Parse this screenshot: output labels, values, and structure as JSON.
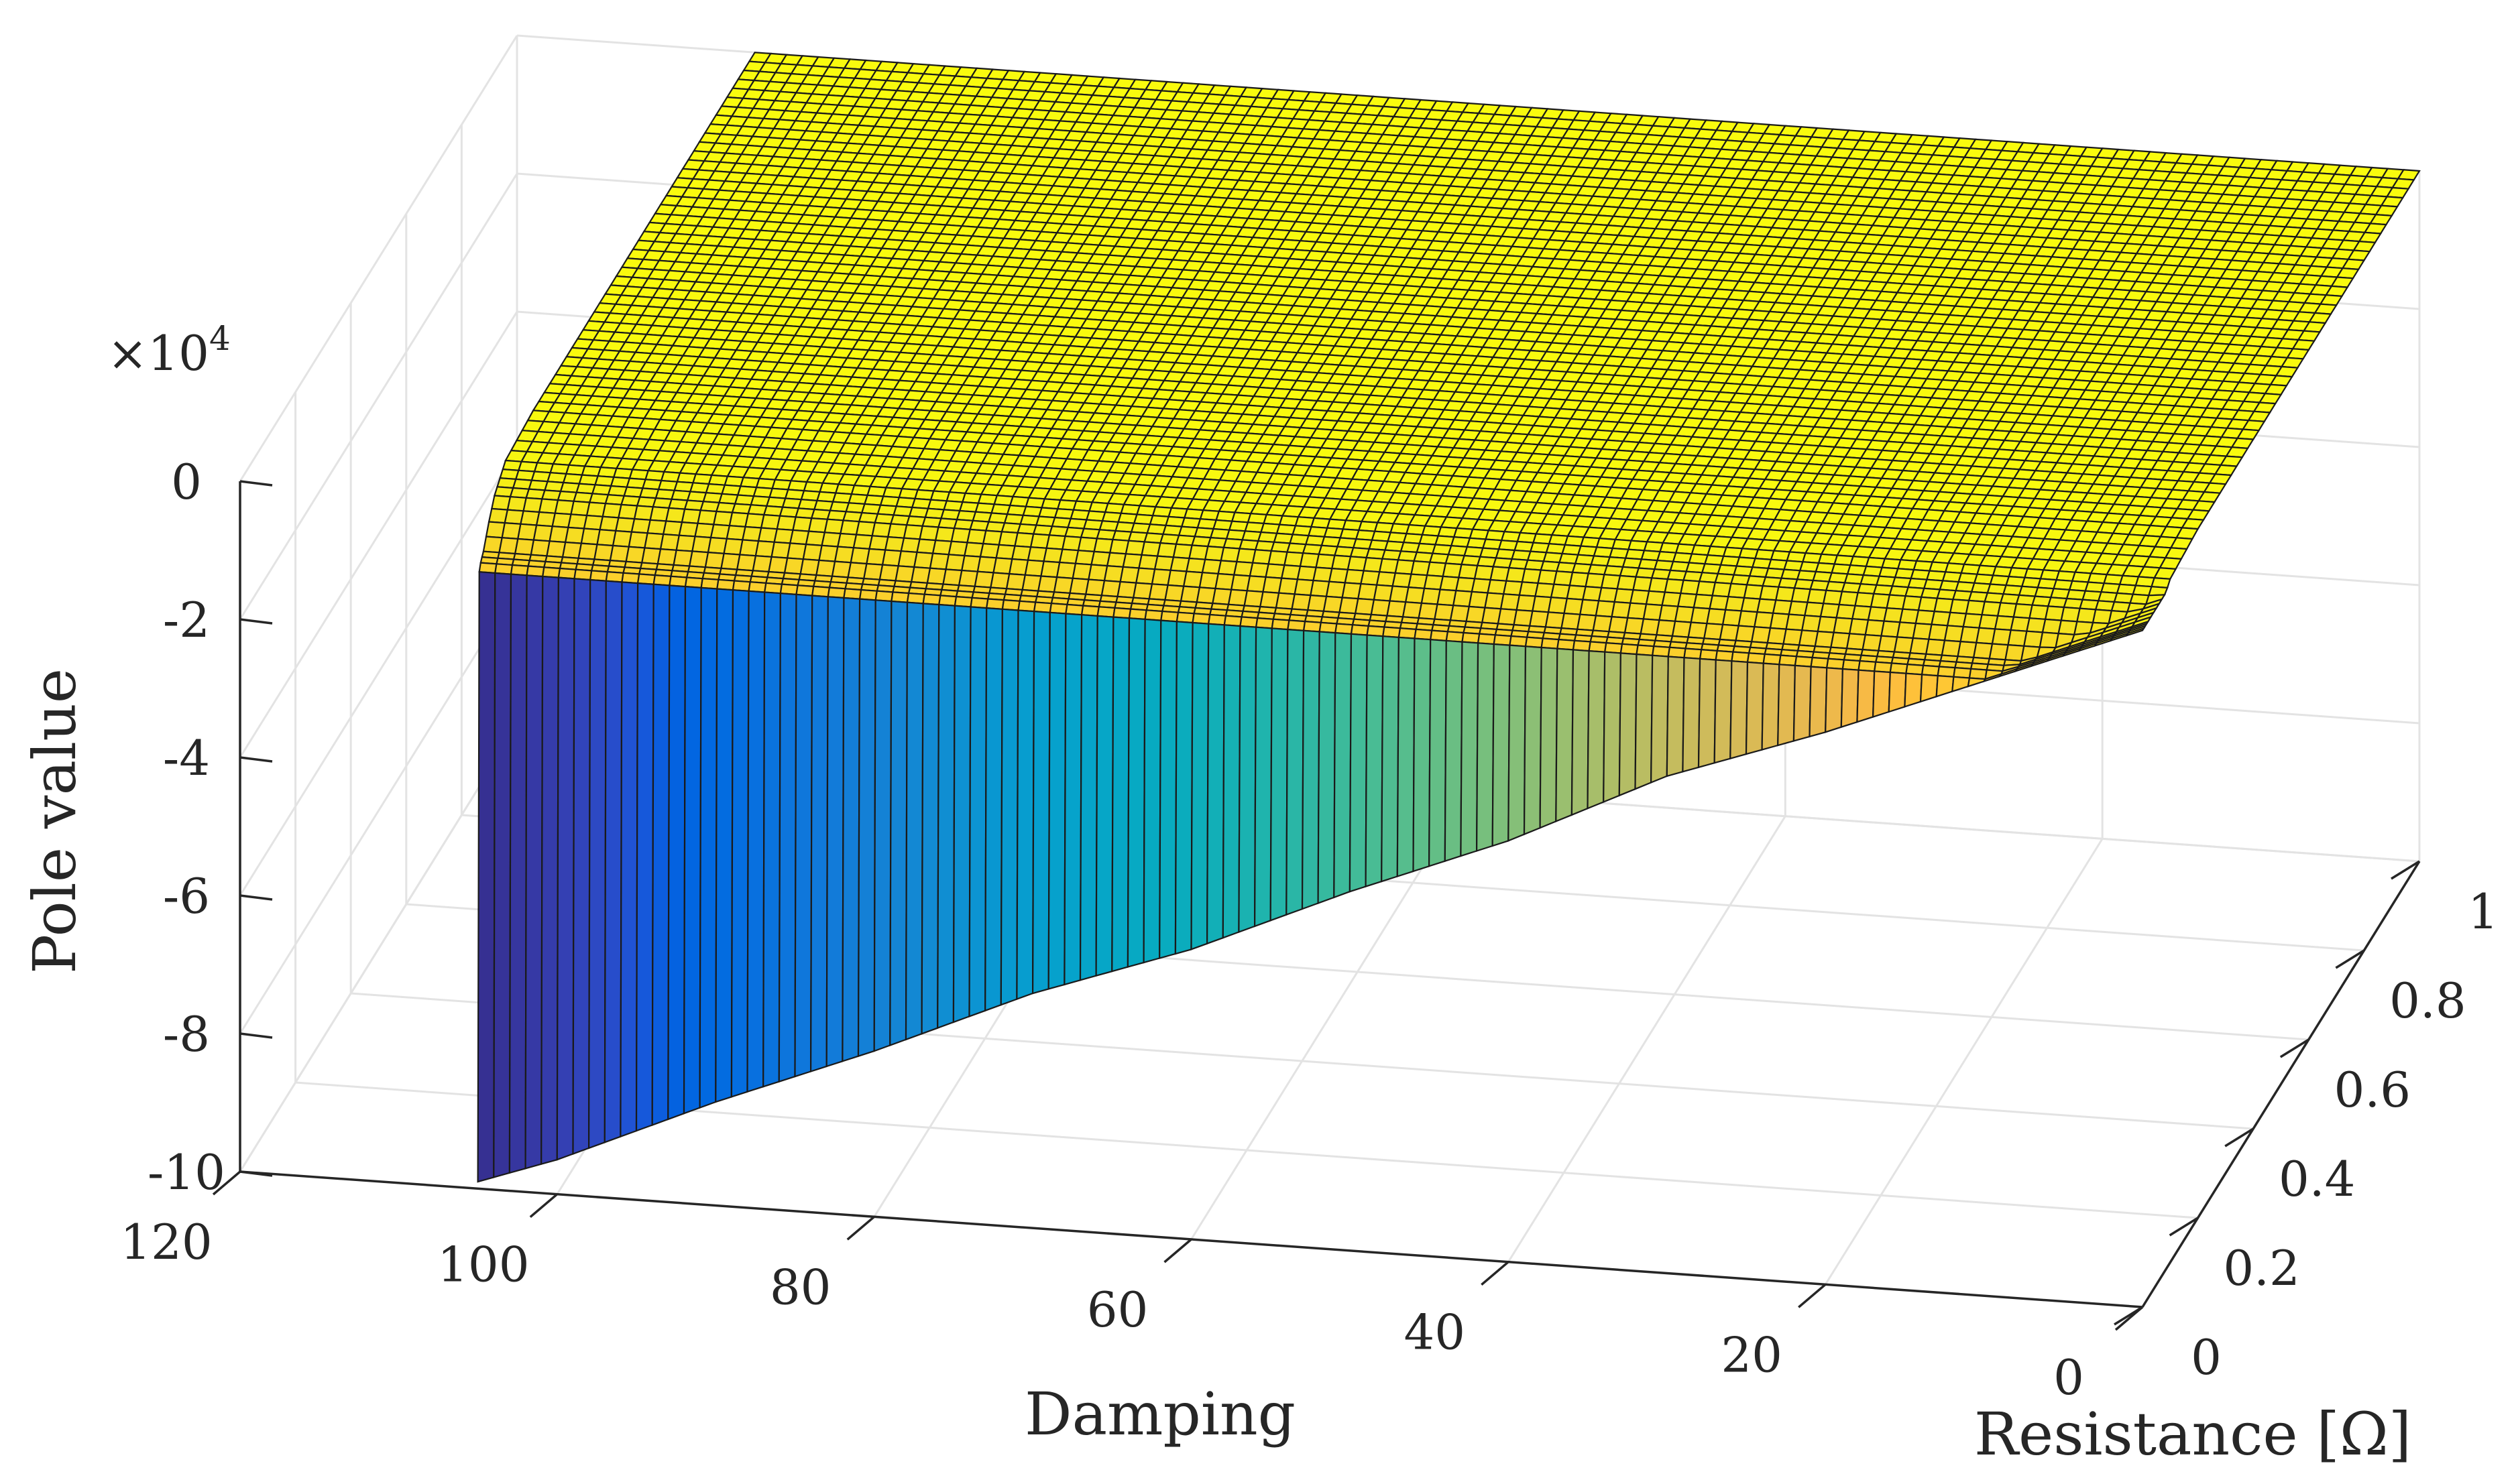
{
  "chart_data": {
    "type": "surface",
    "xlabel": "Damping",
    "ylabel": "Resistance [Ω]",
    "zlabel": "Pole value",
    "z_exponent_label": "×10",
    "z_exponent_power": "4",
    "xlim": [
      0,
      120
    ],
    "ylim": [
      0,
      1
    ],
    "zlim": [
      -10,
      0
    ],
    "z_scale": 10000,
    "x_surface_range": [
      0,
      105
    ],
    "y_surface_range": [
      0,
      1
    ],
    "x_ticks": [
      "0",
      "20",
      "40",
      "60",
      "80",
      "100",
      "120"
    ],
    "x_tick_values": [
      0,
      20,
      40,
      60,
      80,
      100,
      120
    ],
    "y_ticks": [
      "0",
      "0.2",
      "0.4",
      "0.6",
      "0.8",
      "1"
    ],
    "y_tick_values": [
      0,
      0.2,
      0.4,
      0.6,
      0.8,
      1
    ],
    "z_ticks": [
      "-10",
      "-8",
      "-6",
      "-4",
      "-2",
      "0"
    ],
    "z_tick_values": [
      -10,
      -8,
      -6,
      -4,
      -2,
      0
    ],
    "grid": true,
    "colormap": "parula",
    "description_of_values": "Pole value at Resistance = 0 decreases linearly from about -0.2e4 at Damping 0 to about -9.9e4 at Damping 105; for Resistance > about 0.02 the surface is flat near 0 (about -1.1e4 near R = 0.02 rising to about 0 by R = 0.1).",
    "edge_profile_R0": {
      "x": [
        0,
        10,
        20,
        30,
        40,
        50,
        60,
        70,
        80,
        90,
        100,
        105
      ],
      "z": [
        -0.2,
        -1.1,
        -2.0,
        -2.8,
        -3.9,
        -4.8,
        -5.8,
        -6.6,
        -7.6,
        -8.5,
        -9.5,
        -9.9
      ]
    },
    "y_profile": {
      "y": [
        0,
        0.005,
        0.01,
        0.02,
        0.04,
        0.06,
        0.1,
        0.2,
        1.0
      ],
      "z": [
        "edge",
        -1.1,
        -1.0,
        -0.9,
        -0.6,
        -0.35,
        -0.1,
        -0.02,
        0
      ]
    }
  }
}
